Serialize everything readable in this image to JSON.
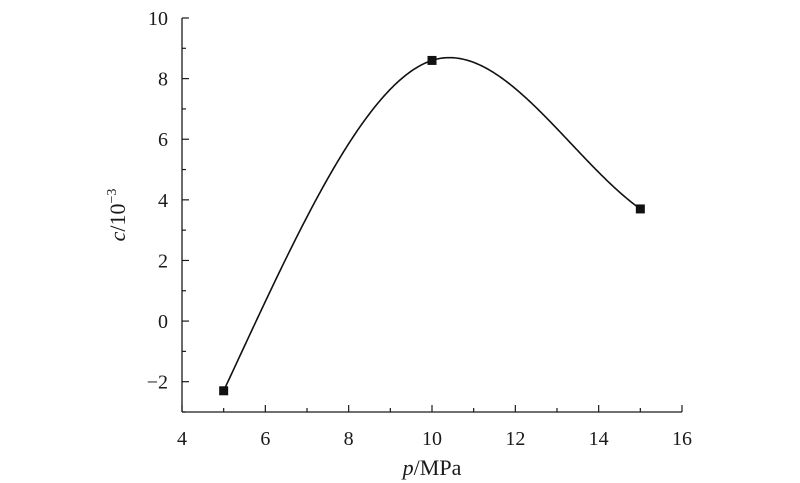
{
  "chart_data": {
    "type": "line",
    "xlabel": {
      "var": "p",
      "unit": "/MPa"
    },
    "ylabel": {
      "var": "c",
      "unit": "/10",
      "exp": "−3"
    },
    "xlim": [
      4,
      16
    ],
    "ylim": [
      -3,
      10
    ],
    "x_ticks": [
      4,
      6,
      8,
      10,
      12,
      14,
      16
    ],
    "y_ticks": [
      -2,
      0,
      2,
      4,
      6,
      8,
      10
    ],
    "x_tick_labels": [
      "4",
      "6",
      "8",
      "10",
      "12",
      "14",
      "16"
    ],
    "y_tick_labels": [
      "−2",
      "0",
      "2",
      "4",
      "6",
      "8",
      "10"
    ],
    "grid": false,
    "marker": "square",
    "smooth": true,
    "series": [
      {
        "x": [
          5,
          10,
          15
        ],
        "y": [
          -2.3,
          8.6,
          3.7
        ]
      }
    ]
  }
}
